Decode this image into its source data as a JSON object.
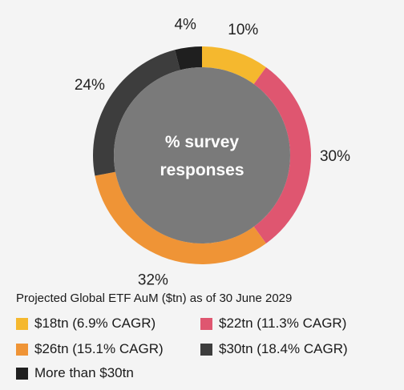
{
  "chart_data": {
    "type": "donut",
    "title": "Projected Global ETF AuM ($tn) as of 30 June 2029",
    "center_text": [
      "% survey",
      "responses"
    ],
    "categories": [
      "$18tn (6.9% CAGR)",
      "$22tn (11.3% CAGR)",
      "$26tn (15.1% CAGR)",
      "$30tn (18.4% CAGR)",
      "More than $30tn"
    ],
    "values": [
      10,
      30,
      32,
      24,
      4
    ],
    "value_labels": [
      "10%",
      "30%",
      "32%",
      "24%",
      "4%"
    ],
    "colors": [
      "#f5b82e",
      "#df5670",
      "#ef9436",
      "#3d3d3d",
      "#1f1f1f"
    ],
    "center_color": "#7a7a7a",
    "legend_placement": "bottom"
  }
}
